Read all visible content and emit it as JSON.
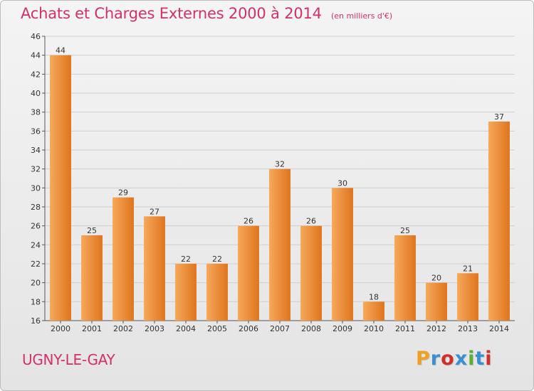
{
  "title": "Achats et Charges Externes 2000 à 2014",
  "subtitle": "(en milliers d'€)",
  "place": "UGNY-LE-GAY",
  "logo": {
    "letters": [
      "P",
      "r",
      "o",
      "x",
      "i",
      "t",
      "i"
    ],
    "colors": [
      "#f0a020",
      "#3a8fd0",
      "#d0302c",
      "#3a8fd0",
      "#5ab030",
      "#3a8fd0",
      "#d0302c"
    ]
  },
  "colors": {
    "bar_light": "#f6a95a",
    "bar_dark": "#e0741e",
    "accent": "#d2306a"
  },
  "chart_data": {
    "type": "bar",
    "title": "Achats et Charges Externes 2000 à 2014",
    "categories": [
      "2000",
      "2001",
      "2002",
      "2003",
      "2004",
      "2005",
      "2006",
      "2007",
      "2008",
      "2009",
      "2010",
      "2011",
      "2012",
      "2013",
      "2014"
    ],
    "values": [
      44,
      25,
      29,
      27,
      22,
      22,
      26,
      32,
      26,
      30,
      18,
      25,
      20,
      21,
      37
    ],
    "ylim": [
      16,
      46
    ],
    "yticks": [
      16,
      18,
      20,
      22,
      24,
      26,
      28,
      30,
      32,
      34,
      36,
      38,
      40,
      42,
      44,
      46
    ],
    "grid": true,
    "legend": "none"
  }
}
